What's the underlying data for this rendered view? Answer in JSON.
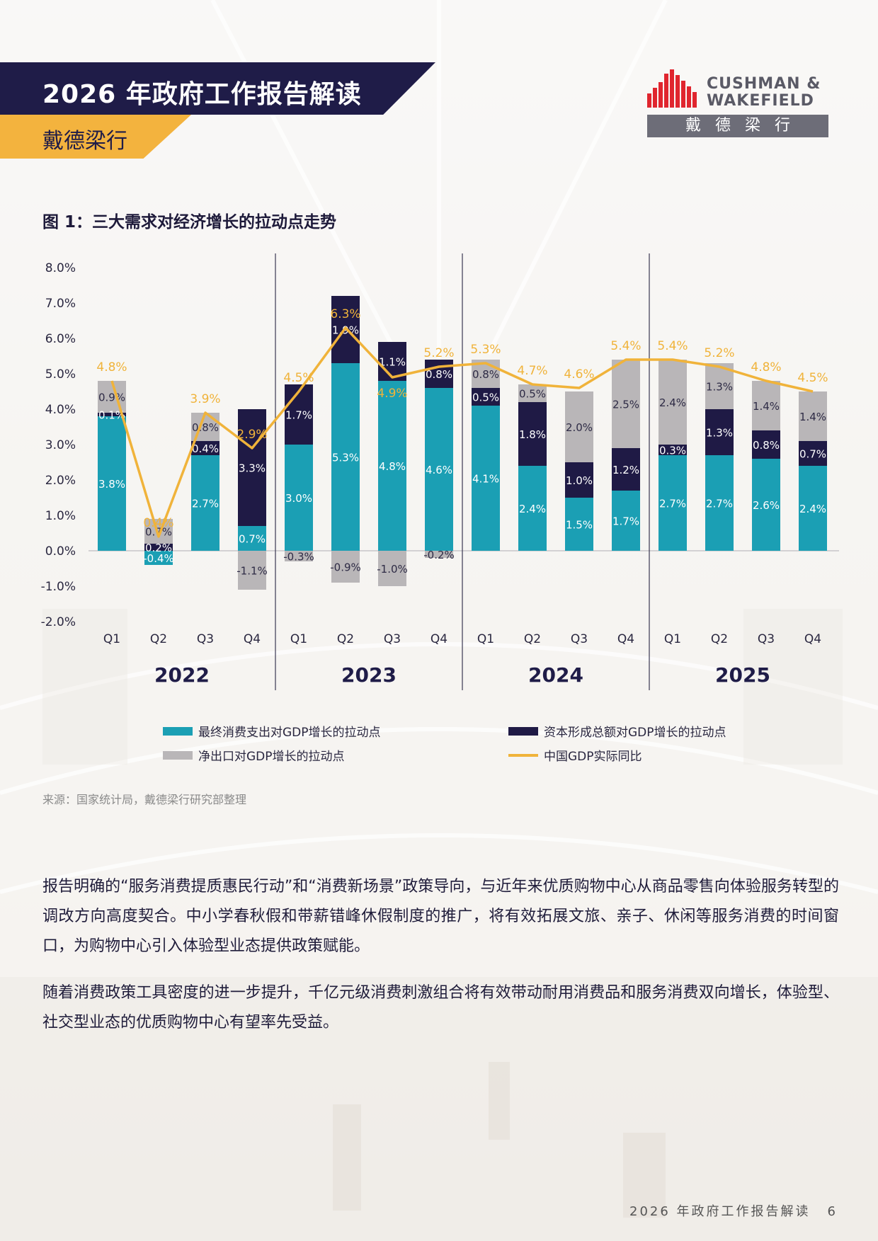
{
  "header": {
    "title": "2026 年政府工作报告解读",
    "subtitle": "戴德梁行"
  },
  "logo": {
    "line1": "CUSHMAN &",
    "line2": "WAKEFIELD",
    "chinese": "戴德梁行"
  },
  "figure_title": "图 1：三大需求对经济增长的拉动点走势",
  "chart_data": {
    "type": "bar",
    "stacked": true,
    "categories": [
      "Q1",
      "Q2",
      "Q3",
      "Q4",
      "Q1",
      "Q2",
      "Q3",
      "Q4",
      "Q1",
      "Q2",
      "Q3",
      "Q4",
      "Q1",
      "Q2",
      "Q3",
      "Q4"
    ],
    "years": [
      "2022",
      "2023",
      "2024",
      "2025"
    ],
    "ylim": [
      -2.0,
      8.0
    ],
    "yticks": [
      "8.0%",
      "7.0%",
      "6.0%",
      "5.0%",
      "4.0%",
      "3.0%",
      "2.0%",
      "1.0%",
      "0.0%",
      "-1.0%",
      "-2.0%"
    ],
    "series": [
      {
        "name": "最终消费支出对GDP增长的拉动点",
        "color": "#1b9fb4",
        "values": [
          3.8,
          -0.4,
          2.7,
          0.7,
          3.0,
          5.3,
          4.8,
          4.6,
          4.1,
          2.4,
          1.5,
          1.7,
          2.7,
          2.7,
          2.6,
          2.4
        ],
        "labels": [
          "3.8%",
          "-0.4%",
          "2.7%",
          "0.7%",
          "3.0%",
          "5.3%",
          "4.8%",
          "4.6%",
          "4.1%",
          "2.4%",
          "1.5%",
          "1.7%",
          "2.7%",
          "2.7%",
          "2.6%",
          "2.4%"
        ]
      },
      {
        "name": "资本形成总额对GDP增长的拉动点",
        "color": "#1f1a45",
        "values": [
          0.1,
          0.2,
          0.4,
          3.3,
          1.7,
          1.9,
          1.1,
          0.8,
          0.5,
          1.8,
          1.0,
          1.2,
          0.3,
          1.3,
          0.8,
          0.7
        ],
        "labels": [
          "0.1%",
          "0.2%",
          "0.4%",
          "3.3%",
          "1.7%",
          "1.9%",
          "1.1%",
          "0.8%",
          "0.5%",
          "1.8%",
          "1.0%",
          "1.2%",
          "0.3%",
          "1.3%",
          "0.8%",
          "0.7%"
        ]
      },
      {
        "name": "净出口对GDP增长的拉动点",
        "color": "#b9b6b8",
        "values": [
          0.9,
          0.7,
          0.8,
          -1.1,
          -0.3,
          -0.9,
          -1.0,
          -0.2,
          0.8,
          0.5,
          2.0,
          2.5,
          2.4,
          1.3,
          1.4,
          1.4
        ],
        "labels": [
          "0.9%",
          "0.7%",
          "0.8%",
          "-1.1%",
          "-0.3%",
          "-0.9%",
          "-1.0%",
          "-0.2%",
          "0.8%",
          "0.5%",
          "2.0%",
          "2.5%",
          "2.4%",
          "1.3%",
          "1.4%",
          "1.4%"
        ]
      },
      {
        "name": "中国GDP实际同比",
        "type": "line",
        "color": "#f0b33a",
        "values": [
          4.8,
          0.4,
          3.9,
          2.9,
          4.5,
          6.3,
          4.9,
          5.2,
          5.3,
          4.7,
          4.6,
          5.4,
          5.4,
          5.2,
          4.8,
          4.5
        ],
        "labels": [
          "4.8%",
          "0.4%",
          "3.9%",
          "2.9%",
          "4.5%",
          "6.3%",
          "4.9%",
          "5.2%",
          "5.3%",
          "4.7%",
          "4.6%",
          "5.4%",
          "5.4%",
          "5.2%",
          "4.8%",
          "4.5%"
        ]
      }
    ],
    "legend_position": "bottom",
    "grid": false
  },
  "source": "来源：国家统计局，戴德梁行研究部整理",
  "paragraphs": [
    "报告明确的“服务消费提质惠民行动”和“消费新场景”政策导向，与近年来优质购物中心从商品零售向体验服务转型的调改方向高度契合。中小学春秋假和带薪错峰休假制度的推广，将有效拓展文旅、亲子、休闲等服务消费的时间窗口，为购物中心引入体验型业态提供政策赋能。",
    "随着消费政策工具密度的进一步提升，千亿元级消费刺激组合将有效带动耐用消费品和服务消费双向增长，体验型、社交型业态的优质购物中心有望率先受益。"
  ],
  "footer": {
    "title": "2026 年政府工作报告解读",
    "page": "6"
  }
}
